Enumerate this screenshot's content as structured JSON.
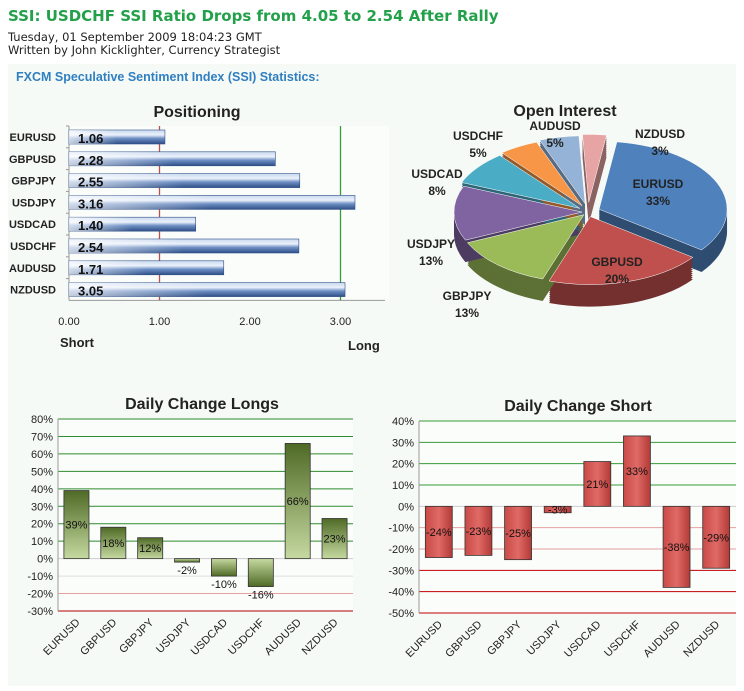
{
  "header": {
    "title": "SSI: USDCHF SSI Ratio Drops from 4.05 to 2.54 After Rally",
    "date": "Tuesday, 01 September 2009 18:04:23 GMT",
    "author": "Written by John Kicklighter, Currency Strategist",
    "subtitle": "FXCM Speculative  Sentiment Index (SSI) Statistics:"
  },
  "chart_data": [
    {
      "type": "bar",
      "orientation": "horizontal",
      "title": "Positioning",
      "categories": [
        "EURUSD",
        "GBPUSD",
        "GBPJPY",
        "USDJPY",
        "USDCAD",
        "USDCHF",
        "AUDUSD",
        "NZDUSD"
      ],
      "values": [
        1.06,
        2.28,
        2.55,
        3.16,
        1.4,
        2.54,
        1.71,
        3.05
      ],
      "value_labels": [
        "1.06",
        "2.28",
        "2.55",
        "3.16",
        "1.40",
        "2.54",
        "1.71",
        "3.05"
      ],
      "xticks": [
        "0.00",
        "1.00",
        "2.00",
        "3.00"
      ],
      "xlim": [
        0,
        3.5
      ],
      "reference_lines": [
        {
          "value": 1.0,
          "color": "#c0504d"
        },
        {
          "value": 3.0,
          "color": "#3a9a3a"
        }
      ],
      "xlabel_left": "Short",
      "xlabel_right": "Long",
      "bar_color": "#4f74b0"
    },
    {
      "type": "pie",
      "title": "Open Interest",
      "categories": [
        "EURUSD",
        "GBPUSD",
        "GBPJPY",
        "USDJPY",
        "USDCAD",
        "USDCHF",
        "AUDUSD",
        "NZDUSD"
      ],
      "values": [
        33,
        20,
        13,
        13,
        8,
        5,
        5,
        3
      ],
      "value_labels": [
        "33%",
        "20%",
        "13%",
        "13%",
        "8%",
        "5%",
        "5%",
        "3%"
      ],
      "colors": [
        "#4f81bd",
        "#c0504d",
        "#9bbb59",
        "#8064a2",
        "#4bacc6",
        "#f79646",
        "#95b3d7",
        "#e6a5a4"
      ]
    },
    {
      "type": "bar",
      "title": "Daily Change Longs",
      "categories": [
        "EURUSD",
        "GBPUSD",
        "GBPJPY",
        "USDJPY",
        "USDCAD",
        "USDCHF",
        "AUDUSD",
        "NZDUSD"
      ],
      "values": [
        39,
        18,
        12,
        -2,
        -10,
        -16,
        66,
        23
      ],
      "value_labels": [
        "39%",
        "18%",
        "12%",
        "-2%",
        "-10%",
        "-16%",
        "66%",
        "23%"
      ],
      "yticks": [
        "80%",
        "70%",
        "60%",
        "50%",
        "40%",
        "30%",
        "20%",
        "10%",
        "0%",
        "-10%",
        "-20%",
        "-30%"
      ],
      "ylim": [
        -30,
        80
      ],
      "bar_color": "#77933c"
    },
    {
      "type": "bar",
      "title": "Daily Change Short",
      "categories": [
        "EURUSD",
        "GBPUSD",
        "GBPJPY",
        "USDJPY",
        "USDCAD",
        "USDCHF",
        "AUDUSD",
        "NZDUSD"
      ],
      "values": [
        -24,
        -23,
        -25,
        -3,
        21,
        33,
        -38,
        -29
      ],
      "value_labels": [
        "-24%",
        "-23%",
        "-25%",
        "-3%",
        "21%",
        "33%",
        "-38%",
        "-29%"
      ],
      "yticks": [
        "40%",
        "30%",
        "20%",
        "10%",
        "0%",
        "-10%",
        "-20%",
        "-30%",
        "-40%",
        "-50%"
      ],
      "ylim": [
        -50,
        40
      ],
      "bar_color": "#c0504d"
    }
  ]
}
